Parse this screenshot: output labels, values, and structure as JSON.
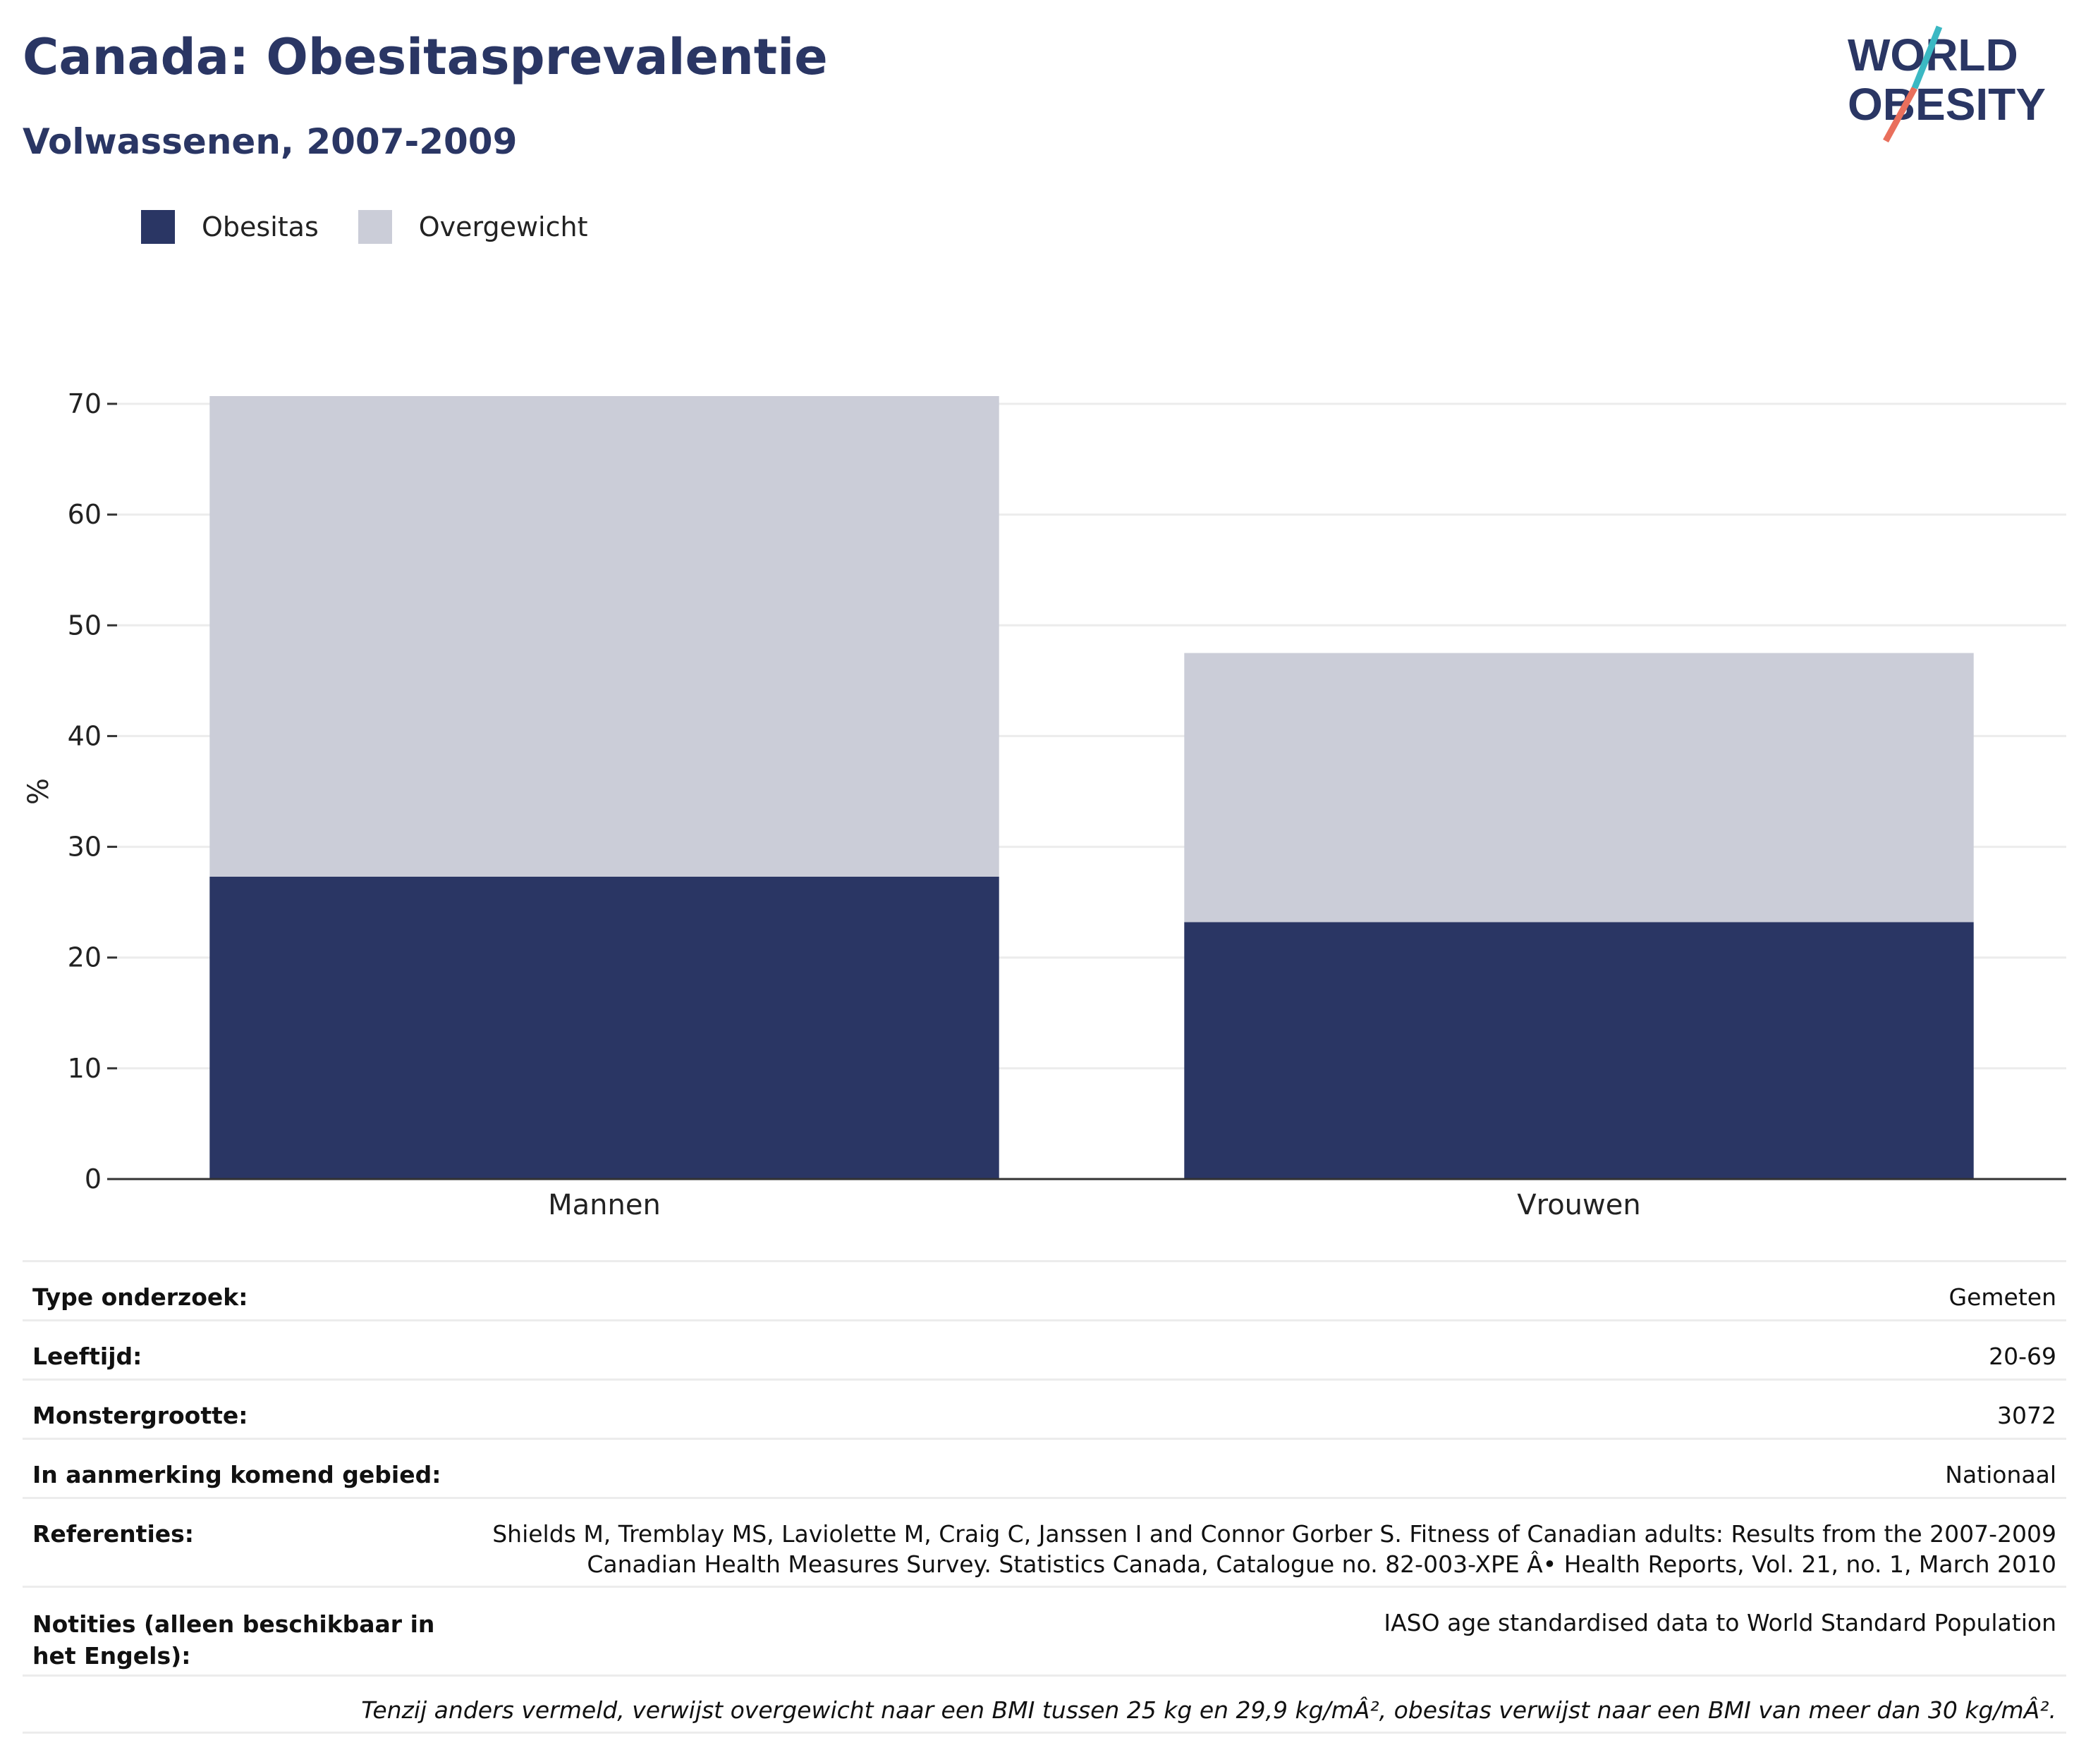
{
  "header": {
    "title": "Canada: Obesitasprevalentie",
    "subtitle": "Volwassenen, 2007-2009"
  },
  "logo": {
    "line1": "WORLD",
    "line2": "OBESITY"
  },
  "colors": {
    "obesitas": "#2a3664",
    "overgewicht": "#cbcdd8",
    "text": "#2a3664"
  },
  "legend": [
    {
      "label": "Obesitas",
      "color": "#2a3664"
    },
    {
      "label": "Overgewicht",
      "color": "#cbcdd8"
    }
  ],
  "chart_data": {
    "type": "bar",
    "stacked": true,
    "categories": [
      "Mannen",
      "Vrouwen"
    ],
    "series": [
      {
        "name": "Obesitas",
        "values": [
          27.3,
          23.2
        ]
      },
      {
        "name": "Overgewicht",
        "values": [
          43.4,
          24.3
        ]
      }
    ],
    "ylabel": "%",
    "ylim": [
      0,
      70
    ],
    "yticks": [
      0,
      10,
      20,
      30,
      40,
      50,
      60,
      70
    ],
    "grid": true,
    "legend_position": "top-left"
  },
  "info": {
    "rows": [
      {
        "key": "Type onderzoek:",
        "value": [
          "Gemeten"
        ]
      },
      {
        "key": "Leeftijd:",
        "value": [
          "20-69"
        ]
      },
      {
        "key": "Monstergrootte:",
        "value": [
          "3072"
        ]
      },
      {
        "key": "In aanmerking komend gebied:",
        "value": [
          "Nationaal"
        ]
      },
      {
        "key": "Referenties:",
        "value": [
          "Shields M, Tremblay MS, Laviolette M, Craig C, Janssen I and Connor Gorber S. Fitness of Canadian adults: Results from the 2007-2009",
          "Canadian Health Measures Survey. Statistics Canada, Catalogue no. 82-003-XPE Â• Health Reports, Vol. 21, no. 1, March 2010"
        ]
      },
      {
        "key": "Notities (alleen beschikbaar in het Engels):",
        "value": [
          "IASO age standardised data to World Standard Population"
        ]
      }
    ],
    "footnote": "Tenzij anders vermeld, verwijst overgewicht naar een BMI tussen 25 kg en 29,9 kg/mÂ², obesitas verwijst naar een BMI van meer dan 30 kg/mÂ²."
  }
}
